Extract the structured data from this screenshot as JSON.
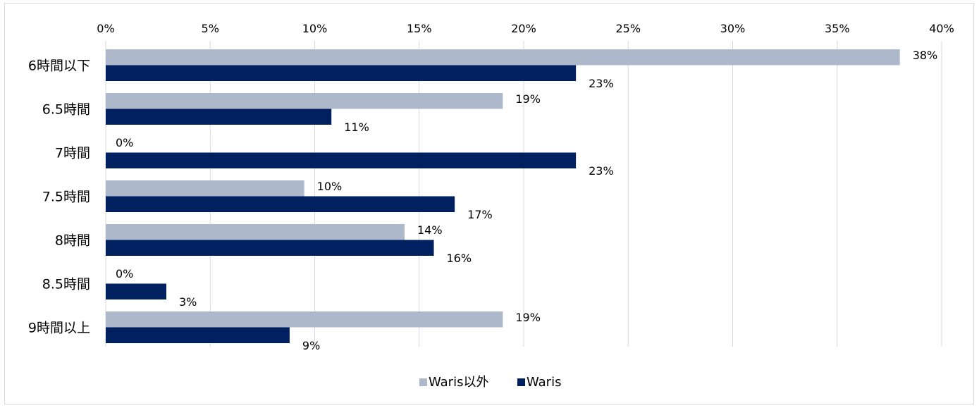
{
  "chart_data": {
    "type": "bar",
    "orientation": "horizontal",
    "categories": [
      "6時間以下",
      "6.5時間",
      "7時間",
      "7.5時間",
      "8時間",
      "8.5時間",
      "9時間以上"
    ],
    "series": [
      {
        "name": "Waris以外",
        "color": "#adb9ca",
        "values": [
          38,
          19,
          0,
          9.5,
          14.3,
          0,
          19
        ],
        "labels": [
          "38%",
          "19%",
          "0%",
          "10%",
          "14%",
          "0%",
          "19%"
        ]
      },
      {
        "name": "Waris",
        "color": "#002060",
        "values": [
          22.5,
          10.8,
          22.5,
          16.7,
          15.7,
          2.9,
          8.8
        ],
        "labels": [
          "23%",
          "11%",
          "23%",
          "17%",
          "16%",
          "3%",
          "9%"
        ]
      }
    ],
    "xlim": [
      0,
      40
    ],
    "x_ticks": [
      0,
      5,
      10,
      15,
      20,
      25,
      30,
      35,
      40
    ],
    "x_tick_labels": [
      "0%",
      "5%",
      "10%",
      "15%",
      "20%",
      "25%",
      "30%",
      "35%",
      "40%"
    ],
    "x_axis_position": "top",
    "grid": true,
    "legend": "bottom-center",
    "title": "",
    "xlabel": "",
    "ylabel": ""
  }
}
